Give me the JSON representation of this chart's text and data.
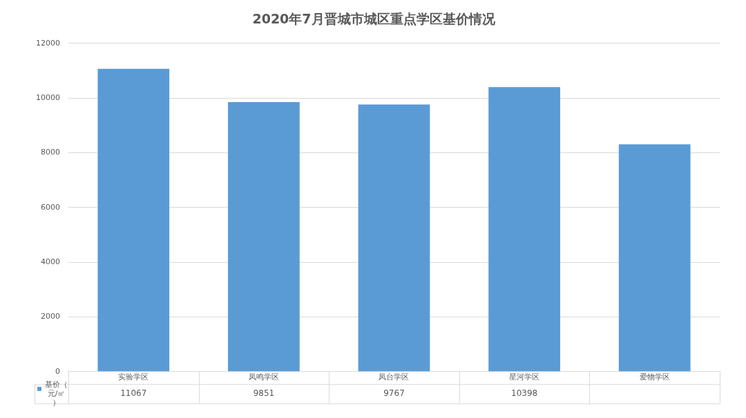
{
  "chart_data": {
    "type": "bar",
    "title": "2020年7月晋城市城区重点学区基价情况",
    "categories": [
      "实验学区",
      "凤鸣学区",
      "凤台学区",
      "星河学区",
      "爱物学区"
    ],
    "series": [
      {
        "name": "基价（元/㎡）",
        "color": "#5b9bd5",
        "values": [
          11067,
          9851,
          9767,
          10398,
          8310
        ],
        "value_labels": [
          "11067",
          "9851",
          "9767",
          "10398",
          null
        ]
      }
    ],
    "ylim": [
      0,
      12000
    ],
    "yticks": [
      0,
      2000,
      4000,
      6000,
      8000,
      10000,
      12000
    ],
    "grid": "y",
    "legend": "bottom"
  }
}
